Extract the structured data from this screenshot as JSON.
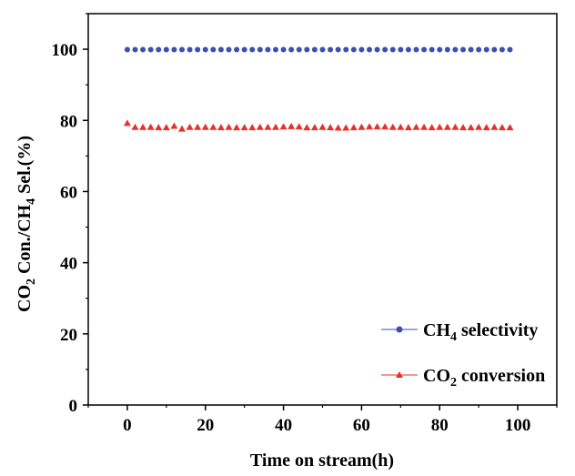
{
  "chart_data": {
    "type": "scatter",
    "xlabel": "Time on stream(h)",
    "ylabel": {
      "parts": [
        "CO",
        "2",
        " Con./CH",
        "4",
        " Sel.(%)"
      ]
    },
    "xlim": [
      -10,
      110
    ],
    "ylim": [
      0,
      110
    ],
    "xticks": [
      0,
      20,
      40,
      60,
      80,
      100
    ],
    "yticks": [
      0,
      20,
      40,
      60,
      80,
      100
    ],
    "grid": false,
    "legend_position": "bottom-right",
    "series": [
      {
        "name": {
          "parts": [
            "CH",
            "4",
            " selectivity"
          ]
        },
        "marker": "circle",
        "color": "#3a4fb0",
        "x": [
          0,
          2,
          4,
          6,
          8,
          10,
          12,
          14,
          16,
          18,
          20,
          22,
          24,
          26,
          28,
          30,
          32,
          34,
          36,
          38,
          40,
          42,
          44,
          46,
          48,
          50,
          52,
          54,
          56,
          58,
          60,
          62,
          64,
          66,
          68,
          70,
          72,
          74,
          76,
          78,
          80,
          82,
          84,
          86,
          88,
          90,
          92,
          94,
          96,
          98
        ],
        "y": [
          99.9,
          99.9,
          99.9,
          99.9,
          99.9,
          99.9,
          99.9,
          99.9,
          99.9,
          99.9,
          99.9,
          99.9,
          99.9,
          99.9,
          99.9,
          99.9,
          99.9,
          99.9,
          99.9,
          99.9,
          99.9,
          99.9,
          99.9,
          99.9,
          99.9,
          99.9,
          99.9,
          99.9,
          99.9,
          99.9,
          99.9,
          99.9,
          99.9,
          99.9,
          99.9,
          99.9,
          99.9,
          99.9,
          99.9,
          99.9,
          99.9,
          99.9,
          99.9,
          99.9,
          99.9,
          99.9,
          99.9,
          99.9,
          99.9,
          99.9
        ]
      },
      {
        "name": {
          "parts": [
            "CO",
            "2",
            " conversion"
          ]
        },
        "marker": "triangle",
        "color": "#e8302a",
        "x": [
          0,
          2,
          4,
          6,
          8,
          10,
          12,
          14,
          16,
          18,
          20,
          22,
          24,
          26,
          28,
          30,
          32,
          34,
          36,
          38,
          40,
          42,
          44,
          46,
          48,
          50,
          52,
          54,
          56,
          58,
          60,
          62,
          64,
          66,
          68,
          70,
          72,
          74,
          76,
          78,
          80,
          82,
          84,
          86,
          88,
          90,
          92,
          94,
          96,
          98
        ],
        "y": [
          79.2,
          78.1,
          78.1,
          78.1,
          78.0,
          78.0,
          78.4,
          77.6,
          78.1,
          78.1,
          78.1,
          78.1,
          78.0,
          78.1,
          78.0,
          78.0,
          78.0,
          78.1,
          78.1,
          78.1,
          78.2,
          78.3,
          78.2,
          78.0,
          78.0,
          78.1,
          78.0,
          77.9,
          77.9,
          78.0,
          78.1,
          78.2,
          78.2,
          78.2,
          78.1,
          78.1,
          78.0,
          78.1,
          78.1,
          78.0,
          78.1,
          78.1,
          78.1,
          78.0,
          78.0,
          78.1,
          78.0,
          78.1,
          78.0,
          78.0
        ]
      }
    ]
  }
}
